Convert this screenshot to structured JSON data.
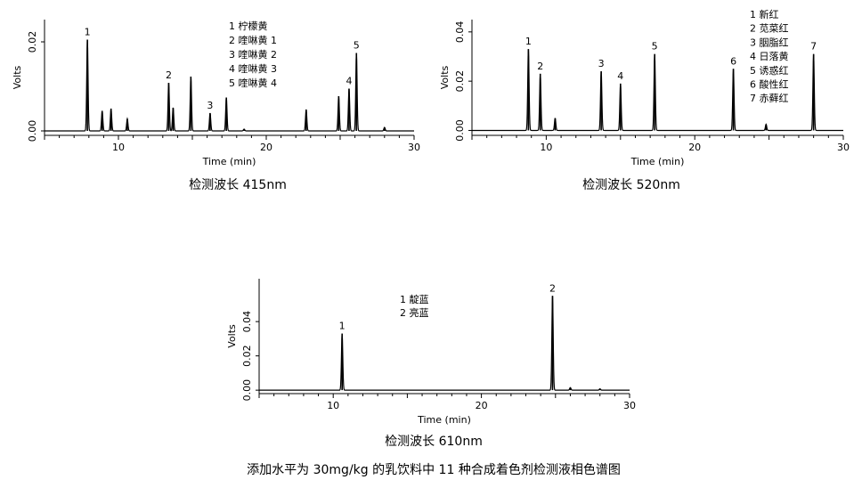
{
  "figure_caption": "添加水平为 30mg/kg 的乳饮料中 11 种合成着色剂检测液相色谱图",
  "chart_data": [
    {
      "type": "line",
      "caption": "检测波长 415nm",
      "xlabel": "Time (min)",
      "ylabel": "Volts",
      "xlim": [
        5,
        30
      ],
      "ylim": [
        -0.001,
        0.025
      ],
      "xticks": [
        10,
        20,
        30
      ],
      "yticks": [
        0.0,
        0.02
      ],
      "ytick_labels": [
        "0.00",
        "0.02"
      ],
      "legend": [
        "1 柠檬黄",
        "2 喹啉黄 1",
        "3 喹啉黄 2",
        "4 喹啉黄 3",
        "5 喹啉黄 4"
      ],
      "peaks": [
        {
          "t": 7.9,
          "h": 0.0205,
          "label": "1"
        },
        {
          "t": 8.9,
          "h": 0.0045
        },
        {
          "t": 9.5,
          "h": 0.005
        },
        {
          "t": 10.6,
          "h": 0.0027
        },
        {
          "t": 13.4,
          "h": 0.0108,
          "label": "2"
        },
        {
          "t": 13.7,
          "h": 0.0052
        },
        {
          "t": 14.9,
          "h": 0.0122
        },
        {
          "t": 16.2,
          "h": 0.004,
          "label": "3"
        },
        {
          "t": 17.3,
          "h": 0.0075
        },
        {
          "t": 18.5,
          "h": 0.0004
        },
        {
          "t": 22.7,
          "h": 0.0048
        },
        {
          "t": 24.9,
          "h": 0.0078
        },
        {
          "t": 25.6,
          "h": 0.0095,
          "label": "4"
        },
        {
          "t": 26.1,
          "h": 0.0175,
          "label": "5"
        },
        {
          "t": 28.0,
          "h": 0.0008
        }
      ]
    },
    {
      "type": "line",
      "caption": "检测波长 520nm",
      "xlabel": "Time (min)",
      "ylabel": "Volts",
      "xlim": [
        5,
        30
      ],
      "ylim": [
        -0.002,
        0.045
      ],
      "xticks": [
        10,
        20,
        30
      ],
      "yticks": [
        0.0,
        0.02,
        0.04
      ],
      "ytick_labels": [
        "0.00",
        "0.02",
        "0.04"
      ],
      "legend": [
        "1 新红",
        "2 苋菜红",
        "3 胭脂红",
        "4 日落黄",
        "5 诱惑红",
        "6 酸性红",
        "7 赤藓红"
      ],
      "peaks": [
        {
          "t": 8.8,
          "h": 0.033,
          "label": "1"
        },
        {
          "t": 9.6,
          "h": 0.023,
          "label": "2"
        },
        {
          "t": 10.6,
          "h": 0.005
        },
        {
          "t": 13.7,
          "h": 0.024,
          "label": "3"
        },
        {
          "t": 15.0,
          "h": 0.019,
          "label": "4"
        },
        {
          "t": 17.3,
          "h": 0.031,
          "label": "5"
        },
        {
          "t": 22.6,
          "h": 0.025,
          "label": "6"
        },
        {
          "t": 24.8,
          "h": 0.0025
        },
        {
          "t": 28.0,
          "h": 0.031,
          "label": "7"
        }
      ]
    },
    {
      "type": "line",
      "caption": "检测波长 610nm",
      "xlabel": "Time (min)",
      "ylabel": "Volts",
      "xlim": [
        5,
        30
      ],
      "ylim": [
        -0.002,
        0.065
      ],
      "xticks": [
        10,
        20,
        30
      ],
      "yticks": [
        0.0,
        0.02,
        0.04
      ],
      "ytick_labels": [
        "0.00",
        "0.02",
        "0.04"
      ],
      "legend": [
        "1 靛蓝",
        "2 亮蓝"
      ],
      "peaks": [
        {
          "t": 10.6,
          "h": 0.033,
          "label": "1"
        },
        {
          "t": 24.8,
          "h": 0.055,
          "label": "2"
        },
        {
          "t": 26.0,
          "h": 0.0015
        },
        {
          "t": 28.0,
          "h": 0.0008
        }
      ]
    }
  ]
}
